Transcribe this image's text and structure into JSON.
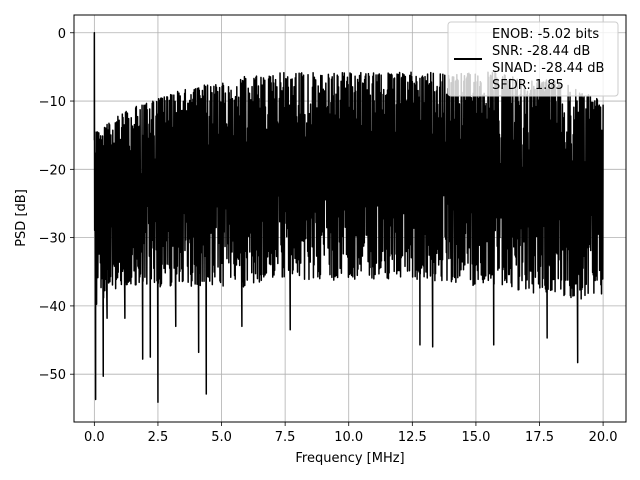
{
  "chart_data": {
    "type": "line",
    "xlabel": "Frequency [MHz]",
    "ylabel": "PSD [dB]",
    "xlim": [
      -0.8,
      20.9
    ],
    "ylim": [
      -57,
      2.6
    ],
    "x_ticks": [
      0.0,
      2.5,
      5.0,
      7.5,
      10.0,
      12.5,
      15.0,
      17.5,
      20.0
    ],
    "x_tick_labels": [
      "0.0",
      "2.5",
      "5.0",
      "7.5",
      "10.0",
      "12.5",
      "15.0",
      "17.5",
      "20.0"
    ],
    "y_ticks": [
      0,
      -10,
      -20,
      -30,
      -40,
      -50
    ],
    "y_tick_labels": [
      "0",
      "−10",
      "−20",
      "−30",
      "−40",
      "−50"
    ],
    "grid": true,
    "legend_position": "top-right",
    "legend_lines": [
      "ENOB: -5.02 bits",
      "SNR: -28.44 dB",
      "SINAD: -28.44 dB",
      "SFDR: 1.85"
    ],
    "series": [
      {
        "color": "#000000",
        "x_range": [
          0,
          20
        ],
        "peak": {
          "x": 0.0,
          "y": 0.0
        },
        "envelope": {
          "x": [
            0,
            1,
            2,
            3,
            4,
            5,
            6,
            7,
            8,
            9,
            10,
            11,
            12,
            13,
            14,
            15,
            16,
            17,
            18,
            19,
            20
          ],
          "upper": [
            -15,
            -12,
            -10.5,
            -9,
            -8,
            -7.5,
            -6.5,
            -6,
            -6,
            -6,
            -6,
            -6,
            -6,
            -6,
            -6,
            -6,
            -6,
            -7,
            -7,
            -8.5,
            -10
          ],
          "lower": [
            -40,
            -37,
            -37,
            -37,
            -37,
            -37,
            -37,
            -36,
            -36,
            -36,
            -36,
            -36,
            -36,
            -36,
            -37,
            -37,
            -37,
            -38,
            -38,
            -39,
            -38
          ]
        },
        "deep_dips": [
          {
            "x": 0.05,
            "y": -53.7
          },
          {
            "x": 0.35,
            "y": -50.3
          },
          {
            "x": 0.5,
            "y": -41.8
          },
          {
            "x": 1.2,
            "y": -41.8
          },
          {
            "x": 1.9,
            "y": -47.8
          },
          {
            "x": 2.2,
            "y": -47.5
          },
          {
            "x": 2.5,
            "y": -54.1
          },
          {
            "x": 3.2,
            "y": -43.0
          },
          {
            "x": 4.1,
            "y": -46.8
          },
          {
            "x": 4.4,
            "y": -52.9
          },
          {
            "x": 5.8,
            "y": -43.0
          },
          {
            "x": 7.7,
            "y": -43.5
          },
          {
            "x": 12.8,
            "y": -45.7
          },
          {
            "x": 13.3,
            "y": -46.0
          },
          {
            "x": 15.7,
            "y": -45.7
          },
          {
            "x": 17.8,
            "y": -44.7
          },
          {
            "x": 19.0,
            "y": -48.3
          }
        ]
      }
    ]
  }
}
